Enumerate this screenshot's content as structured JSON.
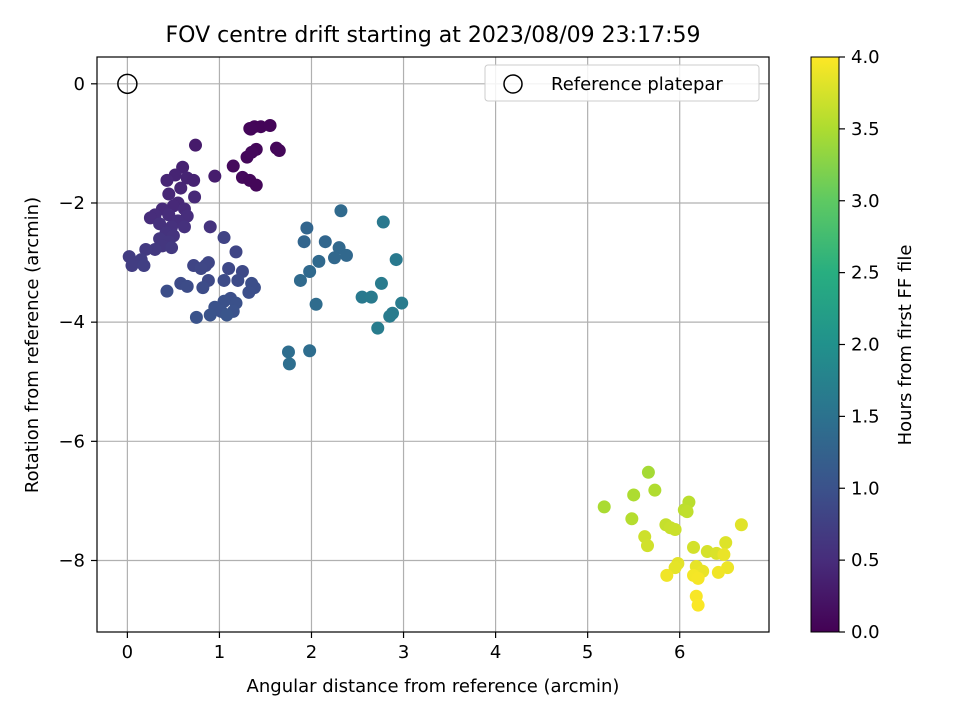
{
  "chart_data": {
    "type": "scatter",
    "title": "FOV centre drift starting at 2023/08/09 23:17:59",
    "xlabel": "Angular distance from reference (arcmin)",
    "ylabel": "Rotation from reference (arcmin)",
    "xlim": [
      -0.33,
      6.97
    ],
    "ylim": [
      -9.2,
      0.45
    ],
    "xticks": [
      "0",
      "1",
      "2",
      "3",
      "4",
      "5",
      "6"
    ],
    "yticks": [
      "0",
      "−2",
      "−4",
      "−6",
      "−8"
    ],
    "grid": true,
    "legend": {
      "placement": "top-right",
      "entries": [
        "Reference platepar"
      ]
    },
    "reference_point": {
      "x": 0,
      "y": 0
    },
    "colorbar": {
      "label": "Hours from first FF file",
      "range": [
        0,
        4.0
      ],
      "ticks": [
        "0.0",
        "0.5",
        "1.0",
        "1.5",
        "2.0",
        "2.5",
        "3.0",
        "3.5",
        "4.0"
      ],
      "colormap": "viridis"
    },
    "points": [
      [
        1.33,
        -0.75,
        0.05
      ],
      [
        1.38,
        -0.72,
        0.05
      ],
      [
        1.45,
        -0.72,
        0.05
      ],
      [
        1.55,
        -0.7,
        0.05
      ],
      [
        1.34,
        -0.76,
        0.06
      ],
      [
        1.3,
        -1.23,
        0.08
      ],
      [
        1.4,
        -1.1,
        0.07
      ],
      [
        1.62,
        -1.08,
        0.06
      ],
      [
        1.65,
        -1.12,
        0.07
      ],
      [
        1.15,
        -1.38,
        0.1
      ],
      [
        1.25,
        -1.57,
        0.1
      ],
      [
        1.33,
        -1.62,
        0.08
      ],
      [
        1.4,
        -1.7,
        0.07
      ],
      [
        1.35,
        -1.15,
        0.09
      ],
      [
        0.74,
        -1.03,
        0.3
      ],
      [
        0.95,
        -1.55,
        0.32
      ],
      [
        0.6,
        -1.4,
        0.38
      ],
      [
        0.52,
        -1.53,
        0.4
      ],
      [
        0.65,
        -1.58,
        0.4
      ],
      [
        0.72,
        -1.62,
        0.38
      ],
      [
        0.43,
        -1.62,
        0.42
      ],
      [
        0.58,
        -1.75,
        0.42
      ],
      [
        0.45,
        -1.85,
        0.44
      ],
      [
        0.73,
        -1.9,
        0.45
      ],
      [
        0.55,
        -2.0,
        0.45
      ],
      [
        0.5,
        -2.05,
        0.46
      ],
      [
        0.62,
        -2.1,
        0.48
      ],
      [
        0.38,
        -2.1,
        0.48
      ],
      [
        0.3,
        -2.2,
        0.5
      ],
      [
        0.25,
        -2.25,
        0.5
      ],
      [
        0.45,
        -2.2,
        0.5
      ],
      [
        0.65,
        -2.22,
        0.52
      ],
      [
        0.55,
        -2.3,
        0.53
      ],
      [
        0.35,
        -2.35,
        0.55
      ],
      [
        0.48,
        -2.4,
        0.55
      ],
      [
        0.62,
        -2.4,
        0.56
      ],
      [
        0.9,
        -2.4,
        0.58
      ],
      [
        0.42,
        -2.5,
        0.58
      ],
      [
        0.5,
        -2.55,
        0.6
      ],
      [
        0.35,
        -2.6,
        0.62
      ],
      [
        0.45,
        -2.65,
        0.62
      ],
      [
        0.38,
        -2.72,
        0.64
      ],
      [
        0.48,
        -2.75,
        0.66
      ],
      [
        0.3,
        -2.78,
        0.66
      ],
      [
        0.2,
        -2.78,
        0.68
      ],
      [
        0.02,
        -2.9,
        0.7
      ],
      [
        0.15,
        -2.95,
        0.72
      ],
      [
        0.05,
        -3.05,
        0.72
      ],
      [
        0.18,
        -3.05,
        0.74
      ],
      [
        1.05,
        -2.58,
        0.8
      ],
      [
        1.18,
        -2.82,
        0.82
      ],
      [
        0.72,
        -3.05,
        0.82
      ],
      [
        0.85,
        -3.05,
        0.84
      ],
      [
        0.88,
        -3.0,
        0.84
      ],
      [
        0.8,
        -3.1,
        0.85
      ],
      [
        1.1,
        -3.1,
        0.86
      ],
      [
        1.25,
        -3.15,
        0.88
      ],
      [
        0.88,
        -3.3,
        0.88
      ],
      [
        1.05,
        -3.3,
        0.9
      ],
      [
        1.2,
        -3.3,
        0.9
      ],
      [
        0.58,
        -3.35,
        0.9
      ],
      [
        0.65,
        -3.4,
        0.92
      ],
      [
        0.82,
        -3.42,
        0.92
      ],
      [
        0.43,
        -3.48,
        0.94
      ],
      [
        1.35,
        -3.35,
        0.94
      ],
      [
        1.38,
        -3.42,
        0.95
      ],
      [
        1.32,
        -3.5,
        0.96
      ],
      [
        1.12,
        -3.6,
        0.96
      ],
      [
        1.05,
        -3.65,
        0.98
      ],
      [
        1.18,
        -3.68,
        0.98
      ],
      [
        0.95,
        -3.75,
        1.0
      ],
      [
        1.02,
        -3.82,
        1.0
      ],
      [
        1.15,
        -3.82,
        1.0
      ],
      [
        0.9,
        -3.88,
        1.02
      ],
      [
        0.75,
        -3.92,
        1.02
      ],
      [
        1.08,
        -3.88,
        1.04
      ],
      [
        1.95,
        -2.42,
        1.3
      ],
      [
        1.92,
        -2.65,
        1.3
      ],
      [
        2.15,
        -2.65,
        1.32
      ],
      [
        2.3,
        -2.75,
        1.34
      ],
      [
        2.25,
        -2.92,
        1.34
      ],
      [
        2.38,
        -2.88,
        1.35
      ],
      [
        2.08,
        -2.98,
        1.36
      ],
      [
        1.98,
        -3.15,
        1.36
      ],
      [
        1.88,
        -3.3,
        1.38
      ],
      [
        2.32,
        -2.13,
        1.38
      ],
      [
        2.05,
        -3.7,
        1.4
      ],
      [
        1.75,
        -4.5,
        1.42
      ],
      [
        1.98,
        -4.48,
        1.42
      ],
      [
        1.76,
        -4.7,
        1.44
      ],
      [
        2.78,
        -2.32,
        1.6
      ],
      [
        2.92,
        -2.95,
        1.62
      ],
      [
        2.55,
        -3.58,
        1.62
      ],
      [
        2.65,
        -3.58,
        1.63
      ],
      [
        2.76,
        -3.35,
        1.64
      ],
      [
        2.98,
        -3.68,
        1.64
      ],
      [
        2.88,
        -3.85,
        1.65
      ],
      [
        2.85,
        -3.9,
        1.65
      ],
      [
        2.72,
        -4.1,
        1.66
      ],
      [
        5.66,
        -6.52,
        3.45
      ],
      [
        5.18,
        -7.1,
        3.48
      ],
      [
        5.5,
        -6.9,
        3.5
      ],
      [
        5.73,
        -6.82,
        3.52
      ],
      [
        5.48,
        -7.3,
        3.55
      ],
      [
        6.1,
        -7.02,
        3.58
      ],
      [
        6.05,
        -7.15,
        3.6
      ],
      [
        6.08,
        -7.18,
        3.62
      ],
      [
        5.85,
        -7.4,
        3.65
      ],
      [
        5.9,
        -7.45,
        3.67
      ],
      [
        5.95,
        -7.48,
        3.68
      ],
      [
        5.62,
        -7.6,
        3.7
      ],
      [
        5.65,
        -7.75,
        3.72
      ],
      [
        6.15,
        -7.78,
        3.74
      ],
      [
        6.3,
        -7.85,
        3.75
      ],
      [
        6.4,
        -7.88,
        3.78
      ],
      [
        6.5,
        -7.7,
        3.8
      ],
      [
        6.67,
        -7.4,
        3.82
      ],
      [
        5.98,
        -8.05,
        3.84
      ],
      [
        5.95,
        -8.12,
        3.85
      ],
      [
        6.18,
        -8.1,
        3.86
      ],
      [
        6.25,
        -8.18,
        3.88
      ],
      [
        6.48,
        -7.9,
        3.88
      ],
      [
        6.52,
        -8.12,
        3.9
      ],
      [
        6.42,
        -8.2,
        3.92
      ],
      [
        5.86,
        -8.25,
        3.92
      ],
      [
        6.15,
        -8.25,
        3.94
      ],
      [
        6.2,
        -8.3,
        3.95
      ],
      [
        6.18,
        -8.6,
        3.97
      ],
      [
        6.2,
        -8.75,
        3.98
      ]
    ]
  }
}
